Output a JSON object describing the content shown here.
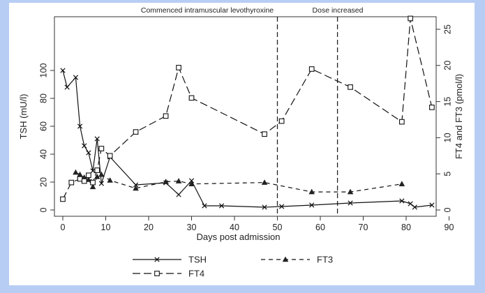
{
  "chart_data": {
    "type": "line",
    "xlabel": "Days post admission",
    "ylabel_left": "TSH (mU/l)",
    "ylabel_right": "FT4 and FT3 (pmol/l)",
    "xlim": [
      0,
      90
    ],
    "ylim_left": [
      0,
      100
    ],
    "ylim_right": [
      0,
      26.5
    ],
    "xticks": [
      0,
      10,
      20,
      30,
      40,
      50,
      60,
      70,
      80,
      90
    ],
    "yticks_left": [
      0,
      20,
      40,
      60,
      80,
      100
    ],
    "yticks_right": [
      0,
      5,
      10,
      15,
      20,
      25
    ],
    "grid": false,
    "legend_position": "bottom",
    "annotations": [
      {
        "text": "Commenced intramuscular levothyroxine",
        "x": 50
      },
      {
        "text": "Dose increased",
        "x": 64
      }
    ],
    "series": [
      {
        "name": "TSH",
        "axis": "left",
        "marker": "x",
        "dash": "solid",
        "x": [
          0,
          1,
          3,
          4,
          5,
          6,
          7,
          8,
          9,
          11,
          17,
          24,
          27,
          30,
          33,
          37,
          47,
          51,
          58,
          67,
          79,
          81,
          82,
          86
        ],
        "y": [
          100,
          88,
          95,
          60,
          46,
          41,
          28,
          51,
          19,
          38,
          18,
          19.5,
          11,
          21,
          3,
          3,
          2,
          2.5,
          3.5,
          5,
          6.5,
          4.5,
          2,
          3.5
        ]
      },
      {
        "name": "FT3",
        "axis": "right",
        "marker": "triangle",
        "dash": "dashed",
        "x": [
          3,
          4,
          5,
          6,
          7,
          8,
          9,
          11,
          17,
          24,
          27,
          30,
          47,
          58,
          67,
          79
        ],
        "y": [
          5.2,
          4.9,
          4.5,
          4.2,
          3.2,
          4.6,
          4.9,
          4.1,
          3.0,
          3.9,
          4.0,
          3.6,
          3.8,
          2.5,
          2.5,
          3.6
        ]
      },
      {
        "name": "FT4",
        "axis": "right",
        "marker": "square",
        "dash": "longdash",
        "x": [
          0,
          2,
          4,
          5,
          6,
          7,
          8,
          9,
          11,
          17,
          24,
          27,
          30,
          47,
          51,
          58,
          67,
          79,
          81,
          86
        ],
        "y": [
          1.5,
          3.8,
          4.3,
          4.0,
          4.8,
          3.8,
          5.5,
          8.5,
          7.5,
          10.8,
          13.0,
          19.7,
          15.5,
          10.5,
          12.3,
          19.5,
          17.0,
          12.2,
          26.5,
          14.2
        ]
      }
    ]
  }
}
